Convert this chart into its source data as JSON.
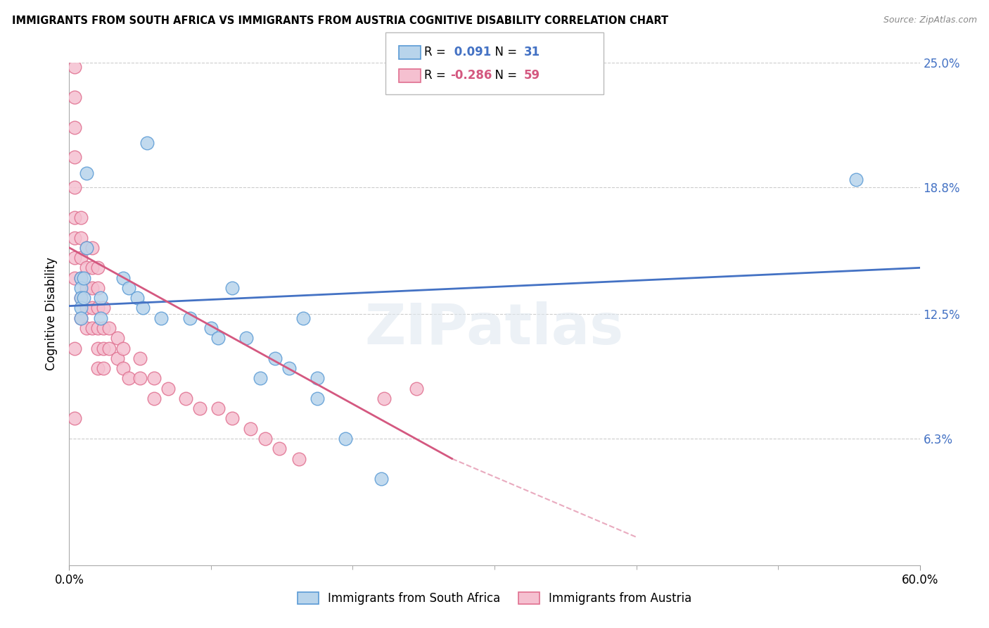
{
  "title": "IMMIGRANTS FROM SOUTH AFRICA VS IMMIGRANTS FROM AUSTRIA COGNITIVE DISABILITY CORRELATION CHART",
  "source": "Source: ZipAtlas.com",
  "ylabel": "Cognitive Disability",
  "x_min": 0.0,
  "x_max": 0.6,
  "y_min": 0.0,
  "y_max": 0.25,
  "y_ticks": [
    0.0,
    0.063,
    0.125,
    0.188,
    0.25
  ],
  "y_tick_labels": [
    "",
    "6.3%",
    "12.5%",
    "18.8%",
    "25.0%"
  ],
  "series1_label": "Immigrants from South Africa",
  "series1_color": "#b8d4eb",
  "series1_edge_color": "#5b9bd5",
  "series1_R": 0.091,
  "series1_N": 31,
  "series1_line_color": "#4472c4",
  "series2_label": "Immigrants from Austria",
  "series2_color": "#f5c0d0",
  "series2_edge_color": "#e07090",
  "series2_R": -0.286,
  "series2_N": 59,
  "series2_line_color": "#d45880",
  "watermark": "ZIPatlas",
  "sa_line_x0": 0.0,
  "sa_line_y0": 0.129,
  "sa_line_x1": 0.6,
  "sa_line_y1": 0.148,
  "at_line_x0": 0.0,
  "at_line_y0": 0.158,
  "at_line_x1": 0.27,
  "at_line_y1": 0.053,
  "at_line_dash_x1": 0.4,
  "at_line_dash_y1": 0.014,
  "south_africa_x": [
    0.012,
    0.055,
    0.012,
    0.008,
    0.008,
    0.008,
    0.008,
    0.008,
    0.01,
    0.01,
    0.022,
    0.022,
    0.038,
    0.042,
    0.048,
    0.052,
    0.065,
    0.085,
    0.1,
    0.105,
    0.115,
    0.125,
    0.135,
    0.145,
    0.155,
    0.165,
    0.175,
    0.555,
    0.175,
    0.195,
    0.22
  ],
  "south_africa_y": [
    0.195,
    0.21,
    0.158,
    0.143,
    0.138,
    0.133,
    0.128,
    0.123,
    0.143,
    0.133,
    0.133,
    0.123,
    0.143,
    0.138,
    0.133,
    0.128,
    0.123,
    0.123,
    0.118,
    0.113,
    0.138,
    0.113,
    0.093,
    0.103,
    0.098,
    0.123,
    0.093,
    0.192,
    0.083,
    0.063,
    0.043
  ],
  "austria_x": [
    0.004,
    0.004,
    0.004,
    0.004,
    0.004,
    0.004,
    0.004,
    0.004,
    0.004,
    0.008,
    0.008,
    0.008,
    0.008,
    0.008,
    0.008,
    0.012,
    0.012,
    0.012,
    0.012,
    0.012,
    0.016,
    0.016,
    0.016,
    0.016,
    0.016,
    0.02,
    0.02,
    0.02,
    0.02,
    0.02,
    0.02,
    0.024,
    0.024,
    0.024,
    0.024,
    0.028,
    0.028,
    0.034,
    0.034,
    0.038,
    0.038,
    0.042,
    0.05,
    0.05,
    0.06,
    0.06,
    0.07,
    0.082,
    0.092,
    0.105,
    0.115,
    0.128,
    0.138,
    0.148,
    0.162,
    0.222,
    0.245,
    0.004,
    0.004
  ],
  "austria_y": [
    0.248,
    0.233,
    0.218,
    0.203,
    0.188,
    0.173,
    0.163,
    0.153,
    0.143,
    0.173,
    0.163,
    0.153,
    0.143,
    0.133,
    0.123,
    0.158,
    0.148,
    0.138,
    0.128,
    0.118,
    0.158,
    0.148,
    0.138,
    0.128,
    0.118,
    0.148,
    0.138,
    0.128,
    0.118,
    0.108,
    0.098,
    0.128,
    0.118,
    0.108,
    0.098,
    0.118,
    0.108,
    0.113,
    0.103,
    0.108,
    0.098,
    0.093,
    0.103,
    0.093,
    0.093,
    0.083,
    0.088,
    0.083,
    0.078,
    0.078,
    0.073,
    0.068,
    0.063,
    0.058,
    0.053,
    0.083,
    0.088,
    0.108,
    0.073
  ]
}
